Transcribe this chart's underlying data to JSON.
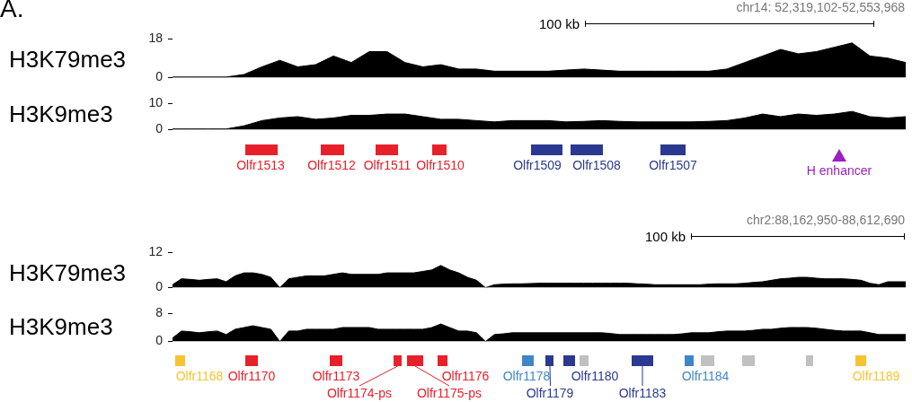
{
  "chart_data": [
    {
      "type": "area",
      "title": "A.",
      "subtitle": "chr14: 52,319,102-52,553,968",
      "annotations": [
        "100 kb"
      ],
      "ylabel": "H3K79me3",
      "tick_labels": "y",
      "grid": false,
      "marker": "none",
      "legend": false,
      "categories": [
        null,
        null,
        null,
        null,
        null,
        null,
        null,
        null,
        null,
        null,
        null,
        null,
        null,
        null,
        null,
        null,
        null,
        null,
        null,
        null,
        null,
        null,
        null,
        null,
        null,
        null,
        null,
        null,
        null,
        null,
        null,
        null,
        null,
        null,
        null,
        null,
        null,
        null,
        null,
        null,
        null,
        null
      ],
      "ylim": [
        0,
        18
      ],
      "yticks": [
        0,
        18
      ],
      "series": [
        {
          "color": "#000000",
          "values": [
            0.3,
            0.3,
            0.3,
            0.3,
            1.5,
            5,
            8,
            5,
            6,
            10,
            7,
            12,
            12,
            7,
            5,
            6,
            4,
            4,
            3,
            3,
            3,
            3,
            3.5,
            4,
            3.5,
            3,
            3,
            3,
            3,
            3,
            3,
            4,
            7,
            10,
            13,
            11,
            12,
            14,
            16,
            10,
            9,
            7
          ]
        }
      ]
    },
    {
      "type": "area",
      "ylabel": "H3K9me3",
      "tick_labels": "y",
      "grid": false,
      "marker": "none",
      "legend": false,
      "categories": [
        null,
        null,
        null,
        null,
        null,
        null,
        null,
        null,
        null,
        null,
        null,
        null,
        null,
        null,
        null,
        null,
        null,
        null,
        null,
        null,
        null,
        null,
        null,
        null,
        null,
        null,
        null,
        null,
        null,
        null,
        null,
        null,
        null,
        null,
        null,
        null,
        null,
        null,
        null,
        null,
        null,
        null
      ],
      "ylim": [
        0,
        10
      ],
      "yticks": [
        0,
        10
      ],
      "series": [
        {
          "color": "#000000",
          "values": [
            0.3,
            0.3,
            0.3,
            0.3,
            1.5,
            3.5,
            4.5,
            5,
            4,
            4.5,
            5.5,
            5.5,
            6,
            6,
            5,
            4,
            4,
            3.5,
            3,
            3.5,
            3.5,
            3.5,
            3,
            3.2,
            3.5,
            3.2,
            3,
            3,
            3,
            3,
            3.2,
            3.5,
            4.5,
            6,
            5,
            6,
            5.5,
            6,
            7,
            5,
            4.5,
            5
          ]
        }
      ],
      "annotations": [
        "Olfr1513",
        "Olfr1512",
        "Olfr1511",
        "Olfr1510",
        "Olfr1509",
        "Olfr1508",
        "Olfr1507",
        "H enhancer"
      ]
    },
    {
      "type": "area",
      "subtitle": "chr2:88,162,950-88,612,690",
      "annotations": [
        "100 kb"
      ],
      "ylabel": "H3K79me3",
      "tick_labels": "y",
      "grid": false,
      "marker": "none",
      "legend": false,
      "categories": [
        null,
        null,
        null,
        null,
        null,
        null,
        null,
        null,
        null,
        null,
        null,
        null,
        null,
        null,
        null,
        null,
        null,
        null,
        null,
        null,
        null,
        null,
        null,
        null,
        null,
        null,
        null,
        null,
        null,
        null,
        null,
        null,
        null,
        null,
        null,
        null,
        null,
        null,
        null,
        null,
        null,
        null,
        null,
        null,
        null,
        null,
        null,
        null,
        null,
        null,
        null,
        null,
        null,
        null,
        null,
        null,
        null,
        null,
        null,
        null,
        null,
        null,
        null,
        null,
        null,
        null,
        null,
        null,
        null,
        null,
        null,
        null,
        null,
        null,
        null,
        null,
        null,
        null,
        null,
        null,
        null,
        null,
        null
      ],
      "ylim": [
        0,
        12
      ],
      "yticks": [
        0,
        12
      ],
      "series": [
        {
          "color": "#000000",
          "values": [
            1,
            3,
            2.8,
            2.5,
            2.8,
            3,
            2,
            4,
            5,
            5,
            4.5,
            3.5,
            0,
            3,
            3.5,
            4,
            4,
            4,
            4.5,
            5,
            4.5,
            4.5,
            4.5,
            4.5,
            5,
            5,
            5,
            5,
            5.5,
            6,
            7.5,
            6,
            5,
            3.5,
            2.5,
            0,
            1,
            1.2,
            1.3,
            1.3,
            1.4,
            1.5,
            1.5,
            1.5,
            1.5,
            1.5,
            1.5,
            1.5,
            1.5,
            1.5,
            1.5,
            1.5,
            1.3,
            1.2,
            1,
            1,
            1,
            1,
            1,
            1,
            1.2,
            1.3,
            1.3,
            1.3,
            1.5,
            1.8,
            2,
            2.5,
            3,
            3.2,
            3.5,
            3.5,
            3.2,
            3,
            3,
            3,
            2.8,
            2.5,
            1.5,
            1,
            2,
            2,
            2
          ]
        }
      ]
    },
    {
      "type": "area",
      "ylabel": "H3K9me3",
      "tick_labels": "y",
      "grid": false,
      "marker": "none",
      "legend": false,
      "categories": [
        null,
        null,
        null,
        null,
        null,
        null,
        null,
        null,
        null,
        null,
        null,
        null,
        null,
        null,
        null,
        null,
        null,
        null,
        null,
        null,
        null,
        null,
        null,
        null,
        null,
        null,
        null,
        null,
        null,
        null,
        null,
        null,
        null,
        null,
        null,
        null,
        null,
        null,
        null,
        null,
        null,
        null,
        null,
        null,
        null,
        null,
        null,
        null,
        null,
        null,
        null,
        null,
        null,
        null,
        null,
        null,
        null,
        null,
        null,
        null,
        null,
        null,
        null,
        null,
        null,
        null,
        null,
        null,
        null,
        null,
        null,
        null,
        null,
        null,
        null,
        null,
        null,
        null,
        null,
        null,
        null,
        null,
        null
      ],
      "ylim": [
        0,
        8
      ],
      "yticks": [
        0,
        8
      ],
      "series": [
        {
          "color": "#000000",
          "values": [
            1,
            3,
            2.8,
            2.5,
            2.8,
            3,
            2,
            3.5,
            4,
            4.5,
            4,
            3.5,
            0,
            3,
            3,
            3.5,
            3.5,
            3.5,
            3.5,
            4,
            4,
            4,
            4,
            3.5,
            3.5,
            3.5,
            3.5,
            3.5,
            3.5,
            4,
            5,
            4,
            3,
            3,
            2.5,
            0,
            2,
            2.2,
            2.5,
            2.5,
            2.5,
            2.5,
            2.5,
            2.5,
            2.5,
            2.5,
            2.5,
            2.5,
            2.5,
            2.3,
            2,
            2,
            2,
            2,
            2,
            2,
            2,
            2.2,
            2.5,
            2.5,
            2.5,
            2.8,
            3,
            3,
            3,
            3.2,
            3.5,
            3.5,
            3.8,
            4,
            4,
            4,
            3.8,
            3.5,
            3.2,
            3,
            3,
            3,
            2.5,
            2,
            2,
            2,
            2
          ]
        }
      ],
      "annotations": [
        "Olfr1168",
        "Olfr1170",
        "Olfr1173",
        "Olfr1174-ps",
        "Olfr1175-ps",
        "Olfr1176",
        "Olfr1178",
        "Olfr1179",
        "Olfr1180",
        "Olfr1183",
        "Olfr1184",
        "Olfr1189"
      ]
    }
  ]
}
